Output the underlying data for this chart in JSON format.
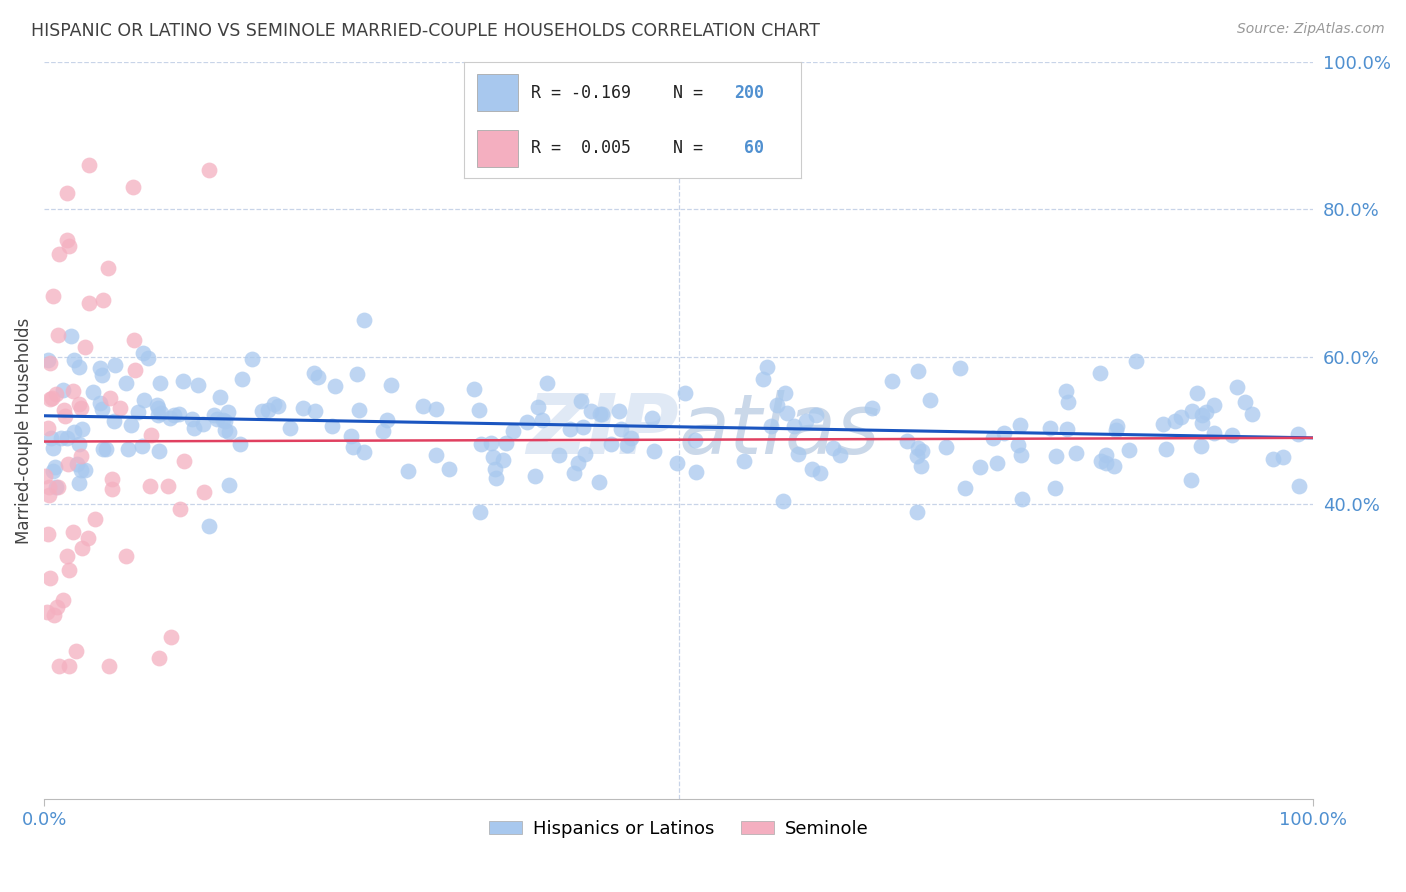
{
  "title": "HISPANIC OR LATINO VS SEMINOLE MARRIED-COUPLE HOUSEHOLDS CORRELATION CHART",
  "source": "Source: ZipAtlas.com",
  "ylabel": "Married-couple Households",
  "blue_color": "#a8c8ee",
  "pink_color": "#f4afc0",
  "trend_blue": "#1a55c0",
  "trend_pink": "#e04060",
  "axis_label_color": "#5090d0",
  "title_color": "#404040",
  "background_color": "#ffffff",
  "grid_color": "#c8d4e8",
  "watermark_color": "#dce8f4",
  "xlim": [
    0,
    100
  ],
  "ylim": [
    0,
    100
  ],
  "ytick_values": [
    40,
    60,
    80,
    100
  ],
  "ytick_labels": [
    "40.0%",
    "60.0%",
    "80.0%",
    "100.0%"
  ]
}
